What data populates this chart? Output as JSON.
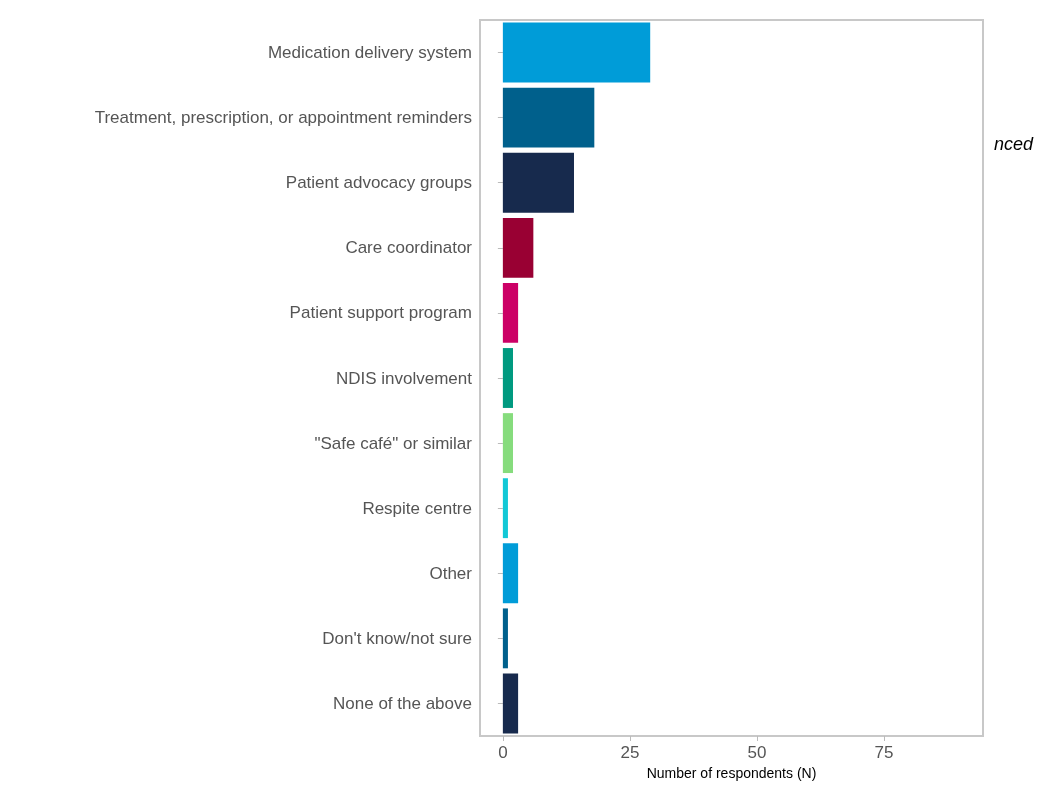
{
  "chart_data": {
    "type": "bar",
    "orientation": "horizontal",
    "xlabel": "Number of respondents (N)",
    "categories": [
      "Medication delivery system",
      "Treatment, prescription, or appointment reminders",
      "Patient advocacy groups",
      "Care coordinator",
      "Patient support program",
      "NDIS involvement",
      "\"Safe café\" or similar",
      "Respite centre",
      "Other",
      "Don't know/not sure",
      "None of the above"
    ],
    "values": [
      29,
      18,
      14,
      6,
      3,
      2,
      2,
      1,
      3,
      1,
      3
    ],
    "colors": [
      "#009cd8",
      "#00608c",
      "#172a4d",
      "#990033",
      "#cc0066",
      "#009a80",
      "#86dc7d",
      "#12c8d6",
      "#009cd8",
      "#00608c",
      "#172a4d"
    ],
    "xlim": [
      -4.5,
      94.5
    ],
    "xticks": [
      0,
      25,
      50,
      75
    ],
    "grid": false,
    "annotations": [
      "nced"
    ]
  }
}
